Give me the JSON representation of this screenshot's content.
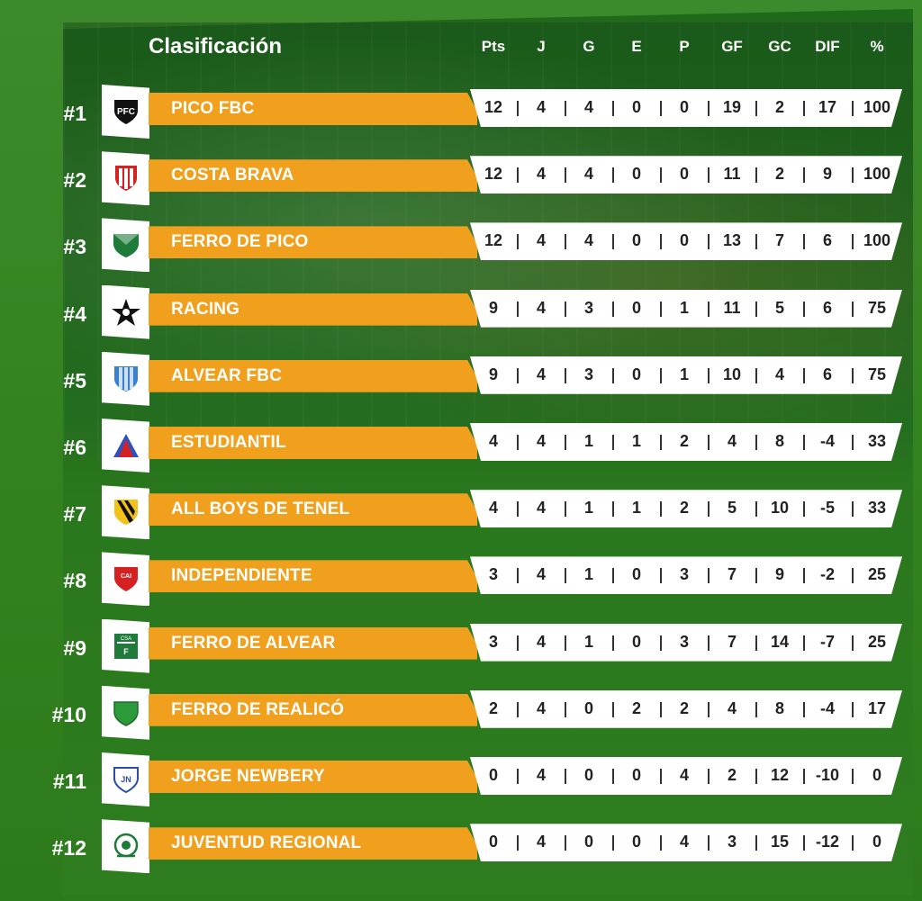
{
  "title": "Clasificación",
  "headers": [
    "Pts",
    "J",
    "G",
    "E",
    "P",
    "GF",
    "GC",
    "DIF",
    "%"
  ],
  "rows": [
    {
      "rank": "#1",
      "team": "PICO FBC",
      "logo_icon": "pfc-crest-icon",
      "stats": [
        "12",
        "4",
        "4",
        "0",
        "0",
        "19",
        "2",
        "17",
        "100"
      ]
    },
    {
      "rank": "#2",
      "team": "COSTA BRAVA",
      "logo_icon": "costa-brava-crest-icon",
      "stats": [
        "12",
        "4",
        "4",
        "0",
        "0",
        "11",
        "2",
        "9",
        "100"
      ]
    },
    {
      "rank": "#3",
      "team": "FERRO DE PICO",
      "logo_icon": "ferro-de-pico-crest-icon",
      "stats": [
        "12",
        "4",
        "4",
        "0",
        "0",
        "13",
        "7",
        "6",
        "100"
      ]
    },
    {
      "rank": "#4",
      "team": "RACING",
      "logo_icon": "racing-star-icon",
      "stats": [
        "9",
        "4",
        "3",
        "0",
        "1",
        "11",
        "5",
        "6",
        "75"
      ]
    },
    {
      "rank": "#5",
      "team": "ALVEAR FBC",
      "logo_icon": "alvear-fbc-crest-icon",
      "stats": [
        "9",
        "4",
        "3",
        "0",
        "1",
        "10",
        "4",
        "6",
        "75"
      ]
    },
    {
      "rank": "#6",
      "team": "ESTUDIANTIL",
      "logo_icon": "estudiantil-crest-icon",
      "stats": [
        "4",
        "4",
        "1",
        "1",
        "2",
        "4",
        "8",
        "-4",
        "33"
      ]
    },
    {
      "rank": "#7",
      "team": "ALL BOYS DE TENEL",
      "logo_icon": "all-boys-crest-icon",
      "stats": [
        "4",
        "4",
        "1",
        "1",
        "2",
        "5",
        "10",
        "-5",
        "33"
      ]
    },
    {
      "rank": "#8",
      "team": "INDEPENDIENTE",
      "logo_icon": "independiente-crest-icon",
      "stats": [
        "3",
        "4",
        "1",
        "0",
        "3",
        "7",
        "9",
        "-2",
        "25"
      ]
    },
    {
      "rank": "#9",
      "team": "FERRO DE ALVEAR",
      "logo_icon": "ferro-de-alvear-crest-icon",
      "stats": [
        "3",
        "4",
        "1",
        "0",
        "3",
        "7",
        "14",
        "-7",
        "25"
      ]
    },
    {
      "rank": "#10",
      "team": "FERRO DE REALICÓ",
      "logo_icon": "ferro-de-realico-crest-icon",
      "stats": [
        "2",
        "4",
        "0",
        "2",
        "2",
        "4",
        "8",
        "-4",
        "17"
      ]
    },
    {
      "rank": "#11",
      "team": "JORGE NEWBERY",
      "logo_icon": "jorge-newbery-crest-icon",
      "stats": [
        "0",
        "4",
        "0",
        "0",
        "4",
        "2",
        "12",
        "-10",
        "0"
      ]
    },
    {
      "rank": "#12",
      "team": "JUVENTUD REGIONAL",
      "logo_icon": "juventud-regional-crest-icon",
      "stats": [
        "0",
        "4",
        "0",
        "0",
        "4",
        "3",
        "15",
        "-12",
        "0"
      ]
    }
  ],
  "colors": {
    "bar": "#f0a01c",
    "background": "#2f7d22",
    "stats_bg": "#ffffff"
  }
}
